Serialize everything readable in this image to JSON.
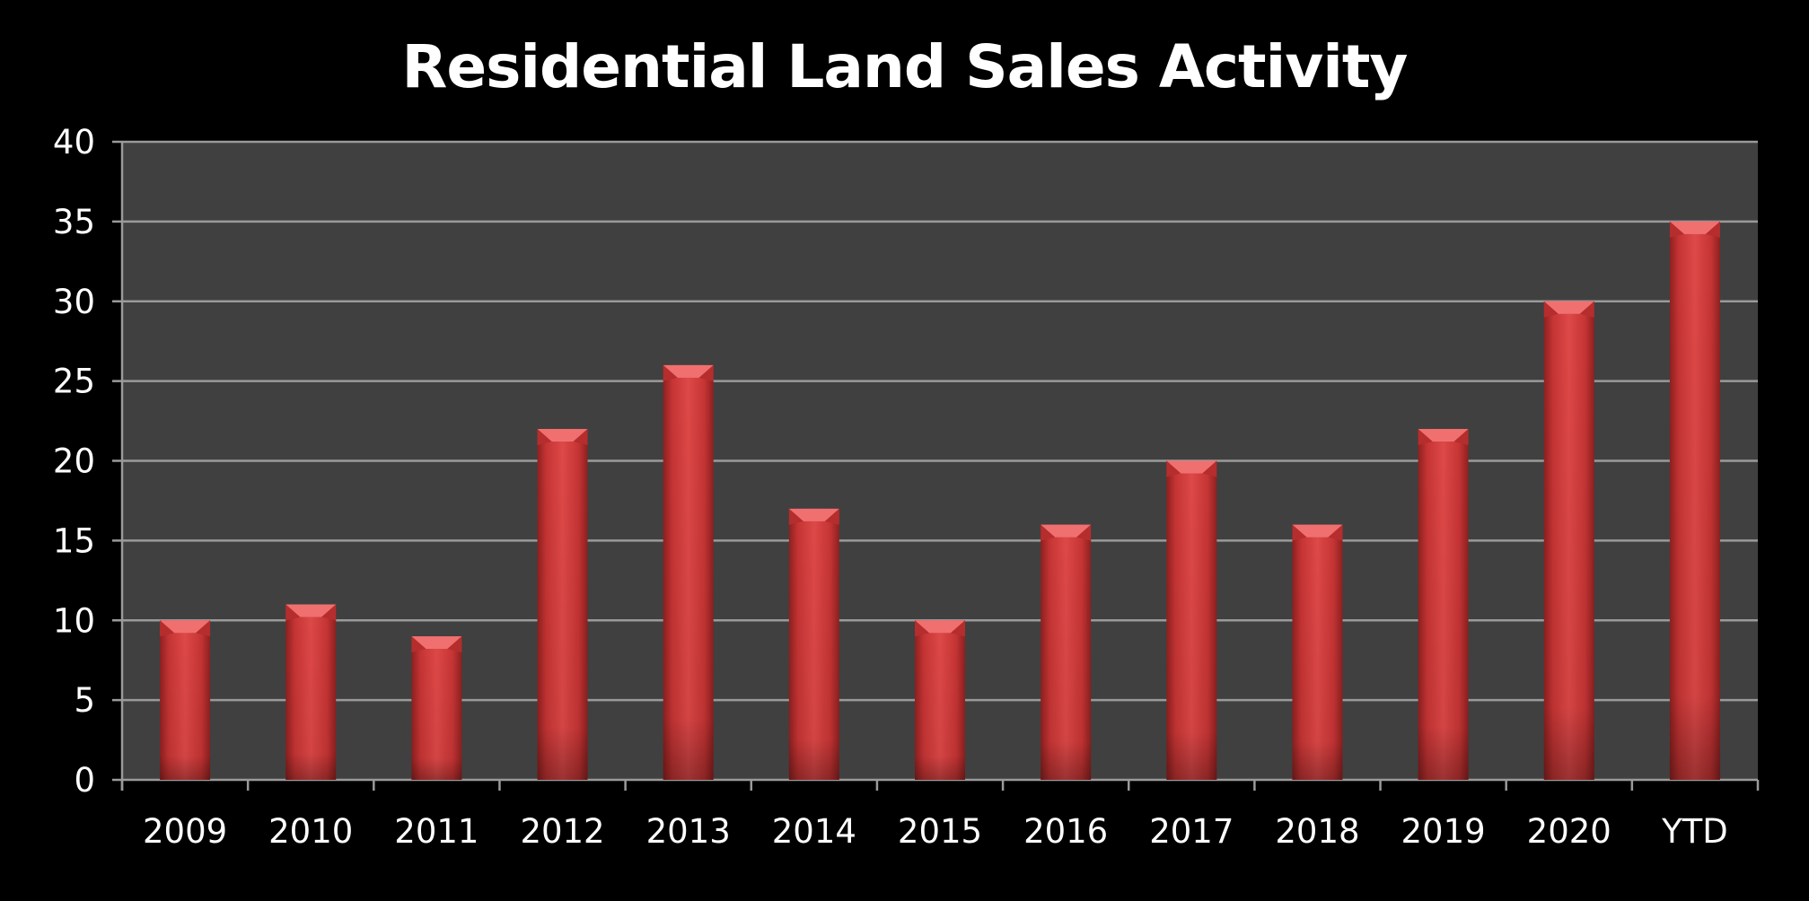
{
  "chart_data": {
    "type": "bar",
    "title": "Residential Land Sales Activity",
    "categories": [
      "2009",
      "2010",
      "2011",
      "2012",
      "2013",
      "2014",
      "2015",
      "2016",
      "2017",
      "2018",
      "2019",
      "2020",
      "YTD"
    ],
    "values": [
      10,
      11,
      9,
      22,
      26,
      17,
      10,
      16,
      20,
      16,
      22,
      30,
      35
    ],
    "ylim": [
      0,
      40
    ],
    "yticks": [
      0,
      5,
      10,
      15,
      20,
      25,
      30,
      35,
      40
    ],
    "grid": true,
    "legend": "none",
    "colors": {
      "background": "#000000",
      "plot_area": "#404040",
      "gridline": "#9a9a9a",
      "bar": "#d94141",
      "bar_dark": "#8e2020",
      "bar_cap": "#f07070",
      "text": "#ffffff"
    }
  }
}
